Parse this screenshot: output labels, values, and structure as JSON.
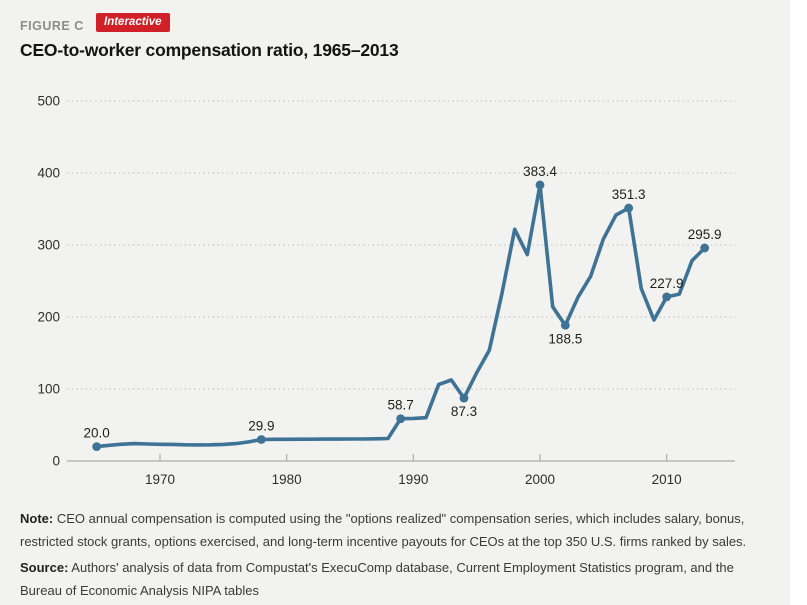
{
  "header": {
    "figure_label": "FIGURE C",
    "badge_label": "Interactive",
    "title": "CEO-to-worker compensation ratio, 1965–2013"
  },
  "colors": {
    "line": "#3f7396",
    "badge_red": "#cf2127",
    "card_background": "#f2f2f0",
    "gridline": "#bdbdbd",
    "axis": "#adadad",
    "tick_label": "#2e2e2e",
    "point_label": "#1f1f1f"
  },
  "chart_data": {
    "type": "line",
    "title": "CEO-to-worker compensation ratio, 1965–2013",
    "series_name": "CEO-to-worker compensation ratio",
    "x": [
      1965,
      1966,
      1967,
      1968,
      1969,
      1970,
      1971,
      1972,
      1973,
      1974,
      1975,
      1976,
      1977,
      1978,
      1979,
      1980,
      1981,
      1982,
      1983,
      1984,
      1985,
      1986,
      1987,
      1988,
      1989,
      1990,
      1991,
      1992,
      1993,
      1994,
      1995,
      1996,
      1997,
      1998,
      1999,
      2000,
      2001,
      2002,
      2003,
      2004,
      2005,
      2006,
      2007,
      2008,
      2009,
      2010,
      2011,
      2012,
      2013
    ],
    "y": [
      20.0,
      21.8,
      23.4,
      24.2,
      23.6,
      23.2,
      23.0,
      22.5,
      22.3,
      22.5,
      23.0,
      24.1,
      26.5,
      29.9,
      30.1,
      30.2,
      30.3,
      30.3,
      30.4,
      30.4,
      30.5,
      30.6,
      30.8,
      31.2,
      58.7,
      59.2,
      60.1,
      106.2,
      112.5,
      87.3,
      122.6,
      153.8,
      233.0,
      321.8,
      286.7,
      383.4,
      214.2,
      188.5,
      227.5,
      256.6,
      308.0,
      341.6,
      351.3,
      239.3,
      195.8,
      227.9,
      231.8,
      278.2,
      295.9
    ],
    "labeled_points": [
      {
        "year": 1965,
        "value": 20.0,
        "label": "20.0",
        "position": "above"
      },
      {
        "year": 1978,
        "value": 29.9,
        "label": "29.9",
        "position": "above"
      },
      {
        "year": 1989,
        "value": 58.7,
        "label": "58.7",
        "position": "above"
      },
      {
        "year": 1994,
        "value": 87.3,
        "label": "87.3",
        "position": "below"
      },
      {
        "year": 2000,
        "value": 383.4,
        "label": "383.4",
        "position": "above"
      },
      {
        "year": 2002,
        "value": 188.5,
        "label": "188.5",
        "position": "below"
      },
      {
        "year": 2007,
        "value": 351.3,
        "label": "351.3",
        "position": "above"
      },
      {
        "year": 2010,
        "value": 227.9,
        "label": "227.9",
        "position": "above"
      },
      {
        "year": 2013,
        "value": 295.9,
        "label": "295.9",
        "position": "above"
      }
    ],
    "xlabel": "",
    "ylabel": "",
    "ylim": [
      0,
      500
    ],
    "yticks": [
      0,
      100,
      200,
      300,
      400,
      500
    ],
    "xticks": [
      1970,
      1980,
      1990,
      2000,
      2010
    ],
    "grid": "dotted horizontal",
    "legend": "none"
  },
  "note": {
    "label": "Note:",
    "text": " CEO annual compensation is computed using the \"options realized\" compensation series, which includes salary, bonus, restricted stock grants, options exercised, and long-term incentive payouts for CEOs at the top 350 U.S. firms ranked by sales."
  },
  "source": {
    "label": "Source:",
    "text": " Authors' analysis of data from Compustat's ExecuComp database, Current Employment Statistics program, and the Bureau of Economic Analysis NIPA tables"
  }
}
